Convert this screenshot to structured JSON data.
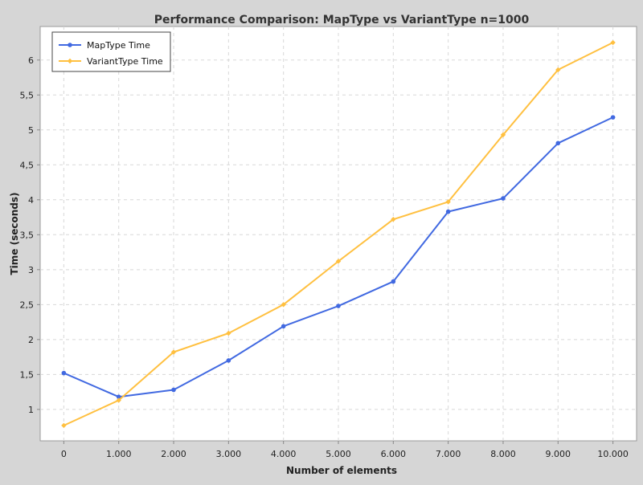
{
  "chart_data": {
    "type": "line",
    "title": "Performance Comparison: MapType vs VariantType n=1000",
    "xlabel": "Number of elements",
    "ylabel": "Time (seconds)",
    "x": [
      0,
      1000,
      2000,
      3000,
      4000,
      5000,
      6000,
      7000,
      8000,
      9000,
      10000
    ],
    "x_tick_labels": [
      "0",
      "1.000",
      "2.000",
      "3.000",
      "4.000",
      "5.000",
      "6.000",
      "7.000",
      "8.000",
      "9.000",
      "10.000"
    ],
    "y_ticks": [
      1,
      1.5,
      2,
      2.5,
      3,
      3.5,
      4,
      4.5,
      5,
      5.5,
      6
    ],
    "y_tick_labels": [
      "1",
      "1,5",
      "2",
      "2,5",
      "3",
      "3,5",
      "4",
      "4,5",
      "5",
      "5,5",
      "6"
    ],
    "xlim": [
      -430,
      10430
    ],
    "ylim": [
      0.55,
      6.48
    ],
    "grid": true,
    "legend_position": "top-left",
    "series": [
      {
        "name": "MapType Time",
        "color": "#4169e1",
        "marker": "circle",
        "values": [
          1.52,
          1.18,
          1.28,
          1.7,
          2.19,
          2.48,
          2.83,
          3.83,
          4.02,
          4.81,
          5.18
        ]
      },
      {
        "name": "VariantType Time",
        "color": "#ffc040",
        "marker": "diamond",
        "values": [
          0.77,
          1.13,
          1.82,
          2.09,
          2.5,
          3.12,
          3.72,
          3.97,
          4.93,
          5.86,
          6.25
        ]
      }
    ]
  }
}
